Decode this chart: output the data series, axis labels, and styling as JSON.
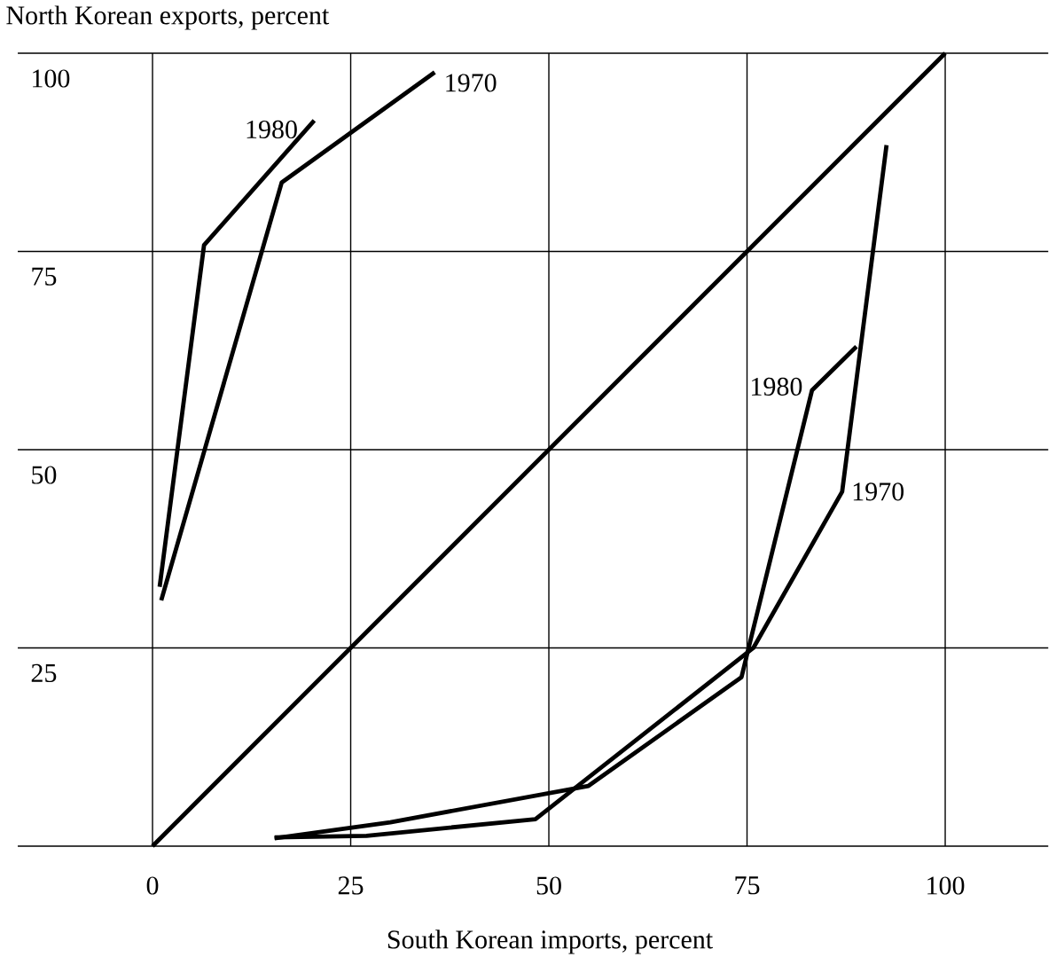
{
  "chart_data": {
    "type": "line",
    "xlabel": "South Korean imports, percent",
    "ylabel": "North Korean exports, percent",
    "xlim": [
      -17,
      113
    ],
    "ylim": [
      0,
      100
    ],
    "xticks": [
      0,
      25,
      50,
      75,
      100
    ],
    "yticks": [
      {
        "value": 0,
        "label": null
      },
      25,
      50,
      75,
      100
    ],
    "grid": true,
    "line_style": "solid",
    "series": [
      {
        "color": "#000000",
        "x": [
          0,
          100
        ],
        "values": [
          0,
          100
        ]
      },
      {
        "name": "1970",
        "color": "#000000",
        "x": [
          1.1,
          16.3,
          35.6
        ],
        "values": [
          31,
          83.7,
          97.6
        ]
      },
      {
        "name": "1980",
        "color": "#000000",
        "x": [
          0.9,
          6.5,
          20.4
        ],
        "values": [
          32.7,
          75.8,
          91.5
        ]
      },
      {
        "name": "1970",
        "color": "#000000",
        "x": [
          15.4,
          27,
          48.3,
          75.8,
          87,
          92.6
        ],
        "values": [
          1.1,
          1.3,
          3.4,
          25,
          44.7,
          88.4
        ]
      },
      {
        "name": "1980",
        "color": "#000000",
        "x": [
          15.4,
          30,
          55,
          74.3,
          75.2,
          83.2,
          88.8
        ],
        "values": [
          1,
          3,
          7.6,
          21.3,
          25,
          57.5,
          63
        ]
      }
    ]
  }
}
